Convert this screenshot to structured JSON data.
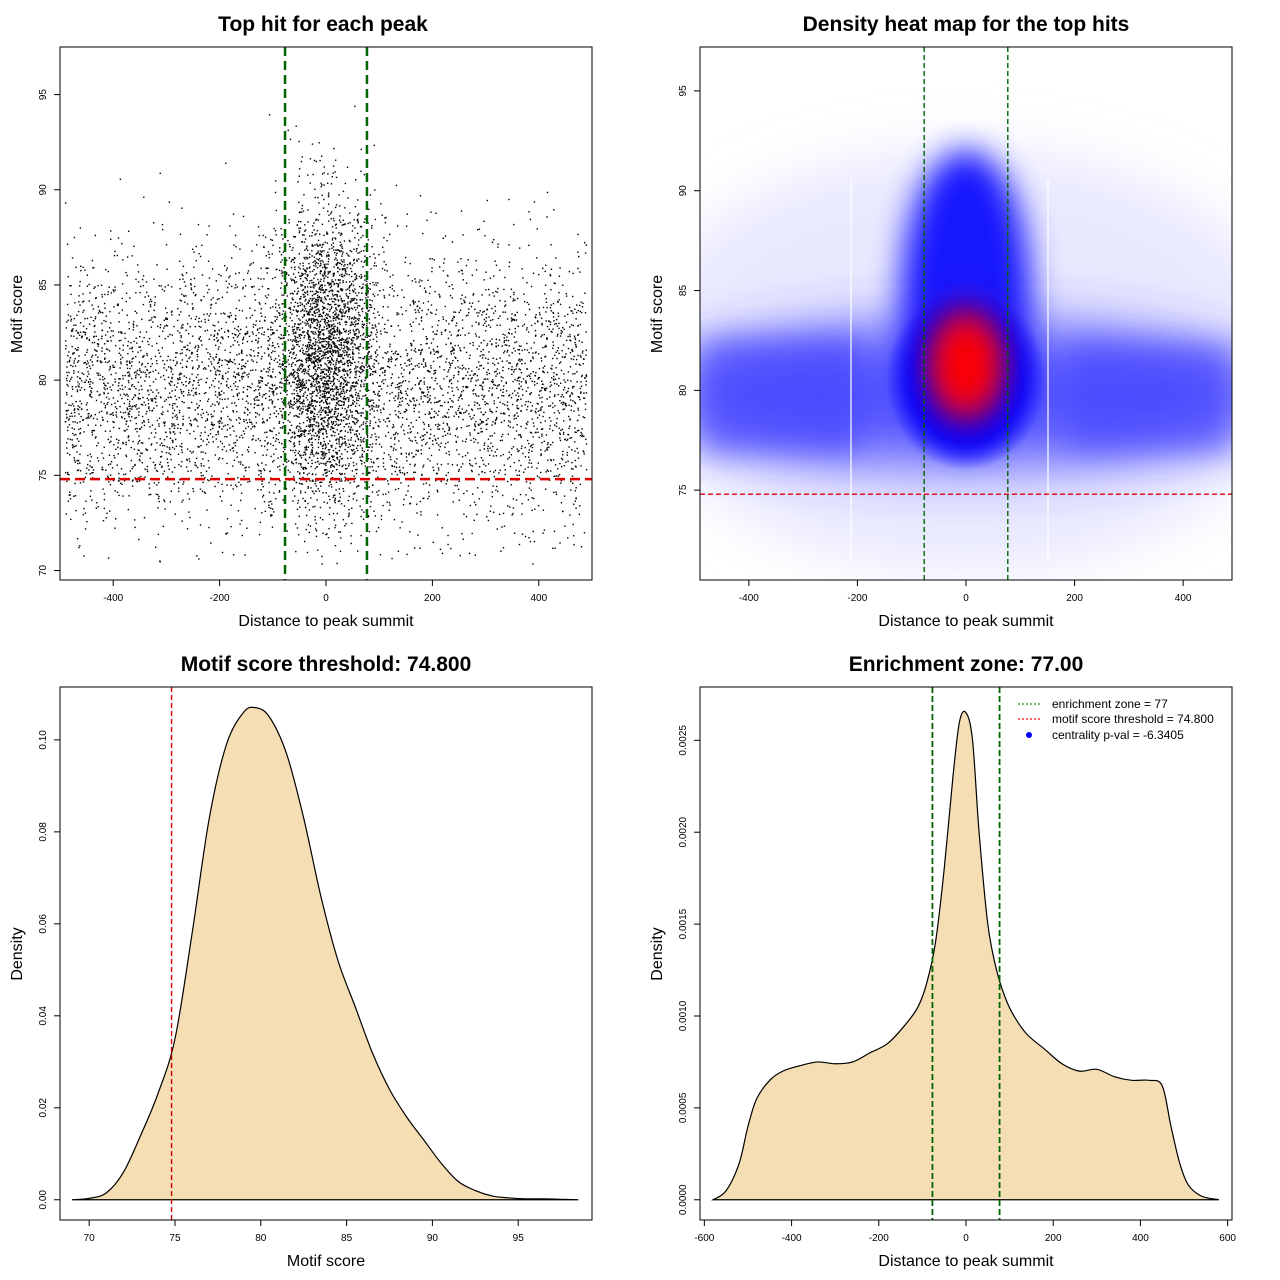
{
  "panels": [
    {
      "title": "Top hit for each peak",
      "xlabel": "Distance to peak summit",
      "ylabel": "Motif score"
    },
    {
      "title": "Density heat map for the top hits",
      "xlabel": "Distance to peak summit",
      "ylabel": "Motif score"
    },
    {
      "title": "Motif score threshold: 74.800",
      "xlabel": "Motif score",
      "ylabel": "Density"
    },
    {
      "title": "Enrichment zone: 77.00",
      "xlabel": "Distance to peak summit",
      "ylabel": "Density",
      "legend": [
        {
          "label": "enrichment zone = 77",
          "color": "#228B22",
          "style": "dotted-line"
        },
        {
          "label": "motif score threshold = 74.800",
          "color": "#FF0000",
          "style": "dotted-line"
        },
        {
          "label": "centrality p-val = -6.3405",
          "color": "#0000FF",
          "style": "point"
        }
      ]
    }
  ],
  "chart_data": [
    {
      "type": "scatter",
      "title": "Top hit for each peak",
      "xlabel": "Distance to peak summit",
      "ylabel": "Motif score",
      "xlim": [
        -500,
        500
      ],
      "ylim": [
        69.5,
        97.5
      ],
      "xticks": [
        -400,
        -200,
        0,
        200,
        400
      ],
      "yticks": [
        70,
        75,
        80,
        85,
        90,
        95
      ],
      "vlines": [
        -77,
        77
      ],
      "hline": 74.8,
      "point_color": "#000000",
      "distribution": {
        "background": {
          "x_range": [
            -490,
            490
          ],
          "score_center": 79.5,
          "score_sd": 3.6
        },
        "central": {
          "x_center": 0,
          "x_sd": 45,
          "score_center": 81.5,
          "score_sd": 3.9
        }
      }
    },
    {
      "type": "heatmap",
      "title": "Density heat map for the top hits",
      "xlabel": "Distance to peak summit",
      "ylabel": "Motif score",
      "xlim": [
        -490,
        490
      ],
      "ylim": [
        70.5,
        97.2
      ],
      "xticks": [
        -400,
        -200,
        0,
        200,
        400
      ],
      "yticks": [
        75,
        80,
        85,
        90,
        95
      ],
      "vlines": [
        -77,
        77
      ],
      "hline": 74.8,
      "colors": [
        "#FFFFFF",
        "#0000FF",
        "#FF0000"
      ],
      "hotspot": {
        "x": 0,
        "y": 81
      }
    },
    {
      "type": "area",
      "title": "Motif score threshold: 74.800",
      "xlabel": "Motif score",
      "ylabel": "Density",
      "xlim": [
        68.3,
        99.3
      ],
      "ylim": [
        -0.0044,
        0.1115
      ],
      "xticks": [
        70,
        75,
        80,
        85,
        90,
        95
      ],
      "yticks": [
        0.0,
        0.02,
        0.04,
        0.06,
        0.08,
        0.1
      ],
      "ytick_labels": [
        "0.00",
        "0.02",
        "0.04",
        "0.06",
        "0.08",
        "0.10"
      ],
      "vline": 74.8,
      "fill": "#F5DEB3",
      "x": [
        69.0,
        70.0,
        71.0,
        72.0,
        73.0,
        74.0,
        75.0,
        76.0,
        77.0,
        78.0,
        79.0,
        79.7,
        80.5,
        81.5,
        82.5,
        83.5,
        84.5,
        85.5,
        86.5,
        87.5,
        88.5,
        89.5,
        90.5,
        91.5,
        92.5,
        93.5,
        94.5,
        95.5,
        96.5,
        97.5,
        98.5
      ],
      "y": [
        0.0,
        0.0003,
        0.0015,
        0.006,
        0.014,
        0.023,
        0.035,
        0.058,
        0.083,
        0.099,
        0.106,
        0.107,
        0.105,
        0.097,
        0.083,
        0.066,
        0.052,
        0.042,
        0.032,
        0.024,
        0.018,
        0.013,
        0.008,
        0.004,
        0.002,
        0.0008,
        0.0004,
        0.0002,
        0.0002,
        0.0001,
        0.0
      ]
    },
    {
      "type": "area",
      "title": "Enrichment zone: 77.00",
      "xlabel": "Distance to peak summit",
      "ylabel": "Density",
      "xlim": [
        -610,
        610
      ],
      "ylim": [
        -0.00011,
        0.00279
      ],
      "xticks": [
        -600,
        -400,
        -200,
        0,
        200,
        400,
        600
      ],
      "yticks": [
        0.0,
        0.0005,
        0.001,
        0.0015,
        0.002,
        0.0025
      ],
      "ytick_labels": [
        "0.0000",
        "0.0005",
        "0.0010",
        "0.0015",
        "0.0020",
        "0.0025"
      ],
      "vlines": [
        -77,
        77
      ],
      "fill": "#F5DEB3",
      "x": [
        -580,
        -550,
        -520,
        -500,
        -480,
        -450,
        -420,
        -380,
        -340,
        -300,
        -260,
        -220,
        -180,
        -140,
        -110,
        -90,
        -70,
        -50,
        -30,
        -15,
        0,
        15,
        30,
        50,
        70,
        90,
        110,
        140,
        180,
        220,
        260,
        300,
        340,
        380,
        420,
        450,
        470,
        490,
        510,
        540,
        580
      ],
      "y": [
        0.0,
        5e-05,
        0.0002,
        0.0004,
        0.00055,
        0.00065,
        0.0007,
        0.00073,
        0.00075,
        0.00074,
        0.00075,
        0.0008,
        0.00085,
        0.00095,
        0.00105,
        0.00118,
        0.0014,
        0.0018,
        0.0023,
        0.0026,
        0.00265,
        0.0025,
        0.002,
        0.0015,
        0.00125,
        0.0011,
        0.001,
        0.0009,
        0.00082,
        0.00074,
        0.0007,
        0.00071,
        0.00067,
        0.00065,
        0.00065,
        0.00062,
        0.0004,
        0.0002,
        8e-05,
        2e-05,
        0.0
      ]
    }
  ]
}
